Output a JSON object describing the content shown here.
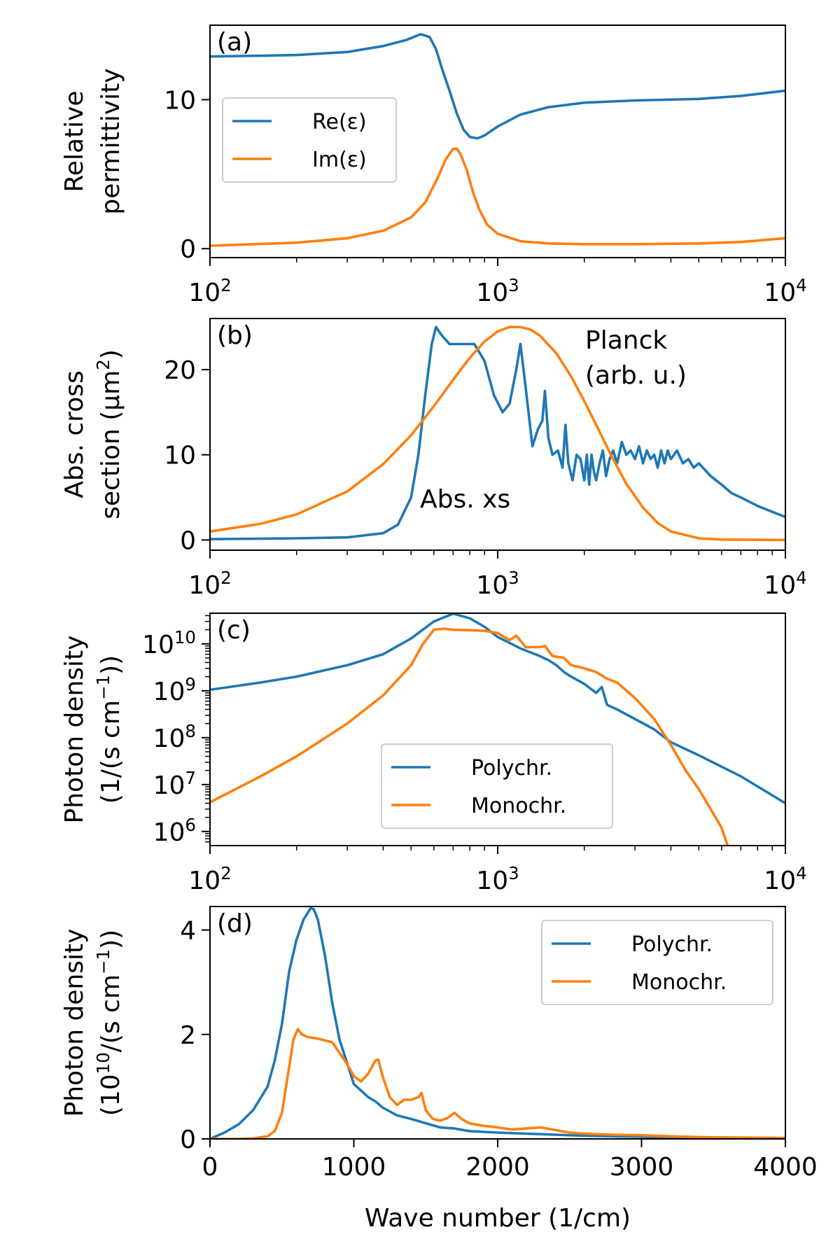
{
  "colors": {
    "blue": "#1f77b4",
    "orange": "#ff7f0e",
    "axis": "#000000",
    "legend_border": "#cccccc"
  },
  "chart_data": [
    {
      "panel": "(a)",
      "type": "line",
      "xscale": "log",
      "xlim": [
        100,
        10000
      ],
      "ylim": [
        -0.6,
        15.0
      ],
      "yticks": [
        0,
        10
      ],
      "ytick_labels": [
        "0",
        "10"
      ],
      "xtick_labels": [
        {
          "base": "10",
          "exp": "2"
        },
        {
          "base": "10",
          "exp": "3"
        },
        {
          "base": "10",
          "exp": "4"
        }
      ],
      "ylabel_lines": [
        "Relative",
        "permittivity"
      ],
      "legend": {
        "position": "center-left"
      },
      "series": [
        {
          "name": "Re(ε)",
          "color_key": "blue",
          "x": [
            100,
            150,
            200,
            300,
            400,
            480,
            540,
            580,
            610,
            640,
            680,
            720,
            760,
            800,
            850,
            900,
            1000,
            1200,
            1500,
            2000,
            3000,
            5000,
            7000,
            10000
          ],
          "y": [
            12.9,
            12.95,
            13.0,
            13.2,
            13.6,
            14.0,
            14.4,
            14.2,
            13.4,
            12.1,
            10.6,
            9.1,
            8.0,
            7.5,
            7.4,
            7.6,
            8.2,
            9.0,
            9.5,
            9.8,
            9.95,
            10.05,
            10.25,
            10.6
          ]
        },
        {
          "name": "Im(ε)",
          "color_key": "orange",
          "x": [
            100,
            200,
            300,
            400,
            500,
            560,
            620,
            660,
            700,
            720,
            740,
            780,
            820,
            860,
            920,
            1000,
            1200,
            1500,
            2000,
            3000,
            5000,
            7000,
            10000
          ],
          "y": [
            0.2,
            0.4,
            0.7,
            1.2,
            2.1,
            3.1,
            4.8,
            6.0,
            6.7,
            6.7,
            6.4,
            5.3,
            3.8,
            2.7,
            1.6,
            1.0,
            0.5,
            0.35,
            0.3,
            0.3,
            0.35,
            0.45,
            0.7
          ]
        }
      ]
    },
    {
      "panel": "(b)",
      "type": "line",
      "xscale": "log",
      "xlim": [
        100,
        10000
      ],
      "ylim": [
        -1.2,
        26.0
      ],
      "yticks": [
        0,
        10,
        20
      ],
      "ytick_labels": [
        "0",
        "10",
        "20"
      ],
      "xtick_labels": [
        {
          "base": "10",
          "exp": "2"
        },
        {
          "base": "10",
          "exp": "3"
        },
        {
          "base": "10",
          "exp": "4"
        }
      ],
      "ylabel_lines": [
        {
          "text": "Abs. cross"
        },
        {
          "text": "section (µm",
          "sup": "2",
          "after": ")"
        }
      ],
      "annotations": [
        {
          "text": "Abs. xs",
          "color_key": "blue"
        },
        {
          "text": "Planck",
          "color_key": "orange"
        },
        {
          "text": "(arb. u.)",
          "color_key": "orange"
        }
      ],
      "series": [
        {
          "name": "Abs. xs",
          "color_key": "blue",
          "x": [
            100,
            200,
            300,
            400,
            450,
            500,
            530,
            560,
            590,
            610,
            640,
            680,
            750,
            830,
            900,
            970,
            1040,
            1100,
            1160,
            1200,
            1250,
            1320,
            1380,
            1430,
            1460,
            1500,
            1550,
            1620,
            1680,
            1720,
            1760,
            1820,
            1880,
            1940,
            2000,
            2040,
            2080,
            2120,
            2160,
            2200,
            2260,
            2320,
            2380,
            2450,
            2520,
            2600,
            2700,
            2800,
            2900,
            3000,
            3100,
            3200,
            3300,
            3400,
            3500,
            3600,
            3700,
            3800,
            3900,
            4000,
            4200,
            4400,
            4600,
            4800,
            5000,
            5500,
            6000,
            6500,
            7000,
            8000,
            9000,
            10000
          ],
          "y": [
            0.1,
            0.2,
            0.3,
            0.8,
            1.8,
            5.0,
            10.0,
            17.0,
            23.0,
            25.0,
            24.0,
            23.0,
            23.0,
            23.0,
            21.0,
            17.0,
            15.0,
            16.0,
            20.0,
            23.0,
            18.0,
            11.0,
            13.0,
            14.0,
            17.5,
            12.0,
            10.0,
            10.5,
            8.5,
            13.5,
            9.0,
            7.0,
            10.0,
            9.5,
            7.0,
            10.0,
            6.5,
            10.0,
            8.0,
            7.0,
            9.0,
            10.5,
            7.5,
            9.5,
            10.5,
            9.0,
            11.5,
            10.0,
            10.5,
            9.5,
            11.0,
            9.0,
            10.5,
            9.5,
            10.0,
            8.5,
            10.5,
            9.0,
            10.5,
            9.5,
            10.5,
            9.0,
            9.5,
            8.5,
            9.0,
            7.5,
            6.5,
            5.5,
            5.0,
            4.0,
            3.3,
            2.7
          ]
        },
        {
          "name": "Planck (arb. u.)",
          "color_key": "orange",
          "x": [
            100,
            150,
            200,
            300,
            400,
            500,
            600,
            700,
            800,
            900,
            1000,
            1100,
            1200,
            1300,
            1400,
            1600,
            1800,
            2000,
            2200,
            2500,
            2800,
            3200,
            3600,
            4000,
            5000,
            6000,
            10000
          ],
          "y": [
            1.0,
            1.9,
            3.0,
            5.7,
            8.9,
            12.3,
            15.7,
            18.8,
            21.4,
            23.3,
            24.5,
            25.0,
            25.0,
            24.7,
            24.0,
            21.9,
            19.2,
            16.3,
            13.5,
            9.7,
            6.6,
            3.8,
            2.0,
            1.0,
            0.2,
            0.05,
            0.0
          ]
        }
      ]
    },
    {
      "panel": "(c)",
      "type": "line",
      "xscale": "log",
      "yscale": "log",
      "xlim": [
        100,
        10000
      ],
      "ylim": [
        500000,
        45000000000
      ],
      "yticks": [
        1000000,
        10000000,
        100000000,
        1000000000,
        10000000000
      ],
      "ytick_labels": [
        {
          "base": "10",
          "exp": "6"
        },
        {
          "base": "10",
          "exp": "7"
        },
        {
          "base": "10",
          "exp": "8"
        },
        {
          "base": "10",
          "exp": "9"
        },
        {
          "base": "10",
          "exp": "10"
        }
      ],
      "xtick_labels": [
        {
          "base": "10",
          "exp": "2"
        },
        {
          "base": "10",
          "exp": "3"
        },
        {
          "base": "10",
          "exp": "4"
        }
      ],
      "ylabel_lines": [
        {
          "text": "Photon density"
        },
        {
          "text": "(1/(s cm",
          "sup": "−1",
          "after": "))"
        }
      ],
      "legend": {
        "position": "lower-center"
      },
      "series": [
        {
          "name": "Polychr.",
          "color_key": "blue",
          "x": [
            100,
            150,
            200,
            300,
            400,
            500,
            600,
            700,
            800,
            900,
            1000,
            1200,
            1400,
            1500,
            1600,
            1700,
            1800,
            2000,
            2200,
            2300,
            2400,
            2600,
            3000,
            3500,
            4000,
            5000,
            7000,
            10000
          ],
          "y": [
            1050000000.0,
            1500000000.0,
            2000000000.0,
            3500000000.0,
            6000000000.0,
            13000000000.0,
            30000000000.0,
            44000000000.0,
            35000000000.0,
            23000000000.0,
            14000000000.0,
            8000000000.0,
            5500000000.0,
            4500000000.0,
            3500000000.0,
            2500000000.0,
            2000000000.0,
            1400000000.0,
            900000000.0,
            1200000000.0,
            500000000.0,
            400000000.0,
            250000000.0,
            150000000.0,
            80000000.0,
            42000000.0,
            15000000.0,
            4000000.0
          ]
        },
        {
          "name": "Monochr.",
          "color_key": "orange",
          "x": [
            100,
            150,
            200,
            300,
            400,
            500,
            550,
            600,
            650,
            700,
            800,
            900,
            1000,
            1100,
            1160,
            1250,
            1400,
            1460,
            1550,
            1700,
            1800,
            2000,
            2200,
            2400,
            2600,
            3000,
            3500,
            4000,
            4500,
            5000,
            5500,
            6000,
            6300
          ],
          "y": [
            4200000.0,
            15000000.0,
            40000000.0,
            200000000.0,
            800000000.0,
            3500000000.0,
            10000000000.0,
            20000000000.0,
            21000000000.0,
            20000000000.0,
            19500000000.0,
            19000000000.0,
            17000000000.0,
            12000000000.0,
            15000000000.0,
            8500000000.0,
            8500000000.0,
            9000000000.0,
            5500000000.0,
            5000000000.0,
            3500000000.0,
            3000000000.0,
            2500000000.0,
            1800000000.0,
            1500000000.0,
            700000000.0,
            250000000.0,
            70000000.0,
            20000000.0,
            8000000.0,
            3000000.0,
            1200000.0,
            500000.0
          ]
        }
      ]
    },
    {
      "panel": "(d)",
      "type": "line",
      "xscale": "linear",
      "xlim": [
        0,
        4000
      ],
      "ylim": [
        0,
        4.45
      ],
      "yticks": [
        0,
        2,
        4
      ],
      "ytick_labels": [
        "0",
        "2",
        "4"
      ],
      "xticks": [
        0,
        1000,
        2000,
        3000,
        4000
      ],
      "xtick_labels": [
        "0",
        "1000",
        "2000",
        "3000",
        "4000"
      ],
      "xlabel": "Wave number (1/cm)",
      "ylabel_lines": [
        {
          "text": "Photon density"
        },
        {
          "text": "(10",
          "sup": "10",
          "after": "/(s cm",
          "sup2": "−1",
          "after2": "))"
        }
      ],
      "legend": {
        "position": "upper-right"
      },
      "series": [
        {
          "name": "Polychr.",
          "color_key": "blue",
          "x": [
            0,
            100,
            200,
            300,
            400,
            450,
            500,
            550,
            600,
            650,
            700,
            720,
            750,
            800,
            850,
            900,
            1000,
            1100,
            1150,
            1200,
            1300,
            1400,
            1500,
            1600,
            1700,
            1800,
            2000,
            2200,
            2400,
            2600,
            3000,
            3500,
            4000
          ],
          "y": [
            0.0,
            0.12,
            0.28,
            0.55,
            1.0,
            1.5,
            2.2,
            3.2,
            3.8,
            4.2,
            4.42,
            4.4,
            4.2,
            3.5,
            2.6,
            1.9,
            1.05,
            0.8,
            0.72,
            0.6,
            0.45,
            0.38,
            0.3,
            0.22,
            0.2,
            0.15,
            0.12,
            0.1,
            0.08,
            0.06,
            0.04,
            0.02,
            0.01
          ]
        },
        {
          "name": "Monochr.",
          "color_key": "orange",
          "x": [
            0,
            100,
            200,
            300,
            400,
            450,
            500,
            540,
            580,
            610,
            640,
            680,
            750,
            850,
            950,
            1000,
            1050,
            1100,
            1150,
            1170,
            1200,
            1250,
            1300,
            1350,
            1400,
            1450,
            1470,
            1500,
            1550,
            1600,
            1650,
            1700,
            1750,
            1800,
            1900,
            2000,
            2100,
            2200,
            2300,
            2400,
            2500,
            2600,
            2800,
            3000,
            3200,
            3500,
            4000
          ],
          "y": [
            0.0,
            0.0,
            0.0,
            0.01,
            0.05,
            0.15,
            0.5,
            1.2,
            1.9,
            2.1,
            2.0,
            1.95,
            1.92,
            1.85,
            1.45,
            1.2,
            1.1,
            1.25,
            1.5,
            1.52,
            1.2,
            0.8,
            0.65,
            0.75,
            0.75,
            0.8,
            0.88,
            0.55,
            0.38,
            0.35,
            0.4,
            0.5,
            0.38,
            0.3,
            0.25,
            0.22,
            0.18,
            0.2,
            0.22,
            0.17,
            0.12,
            0.1,
            0.08,
            0.07,
            0.05,
            0.03,
            0.02
          ]
        }
      ]
    }
  ]
}
